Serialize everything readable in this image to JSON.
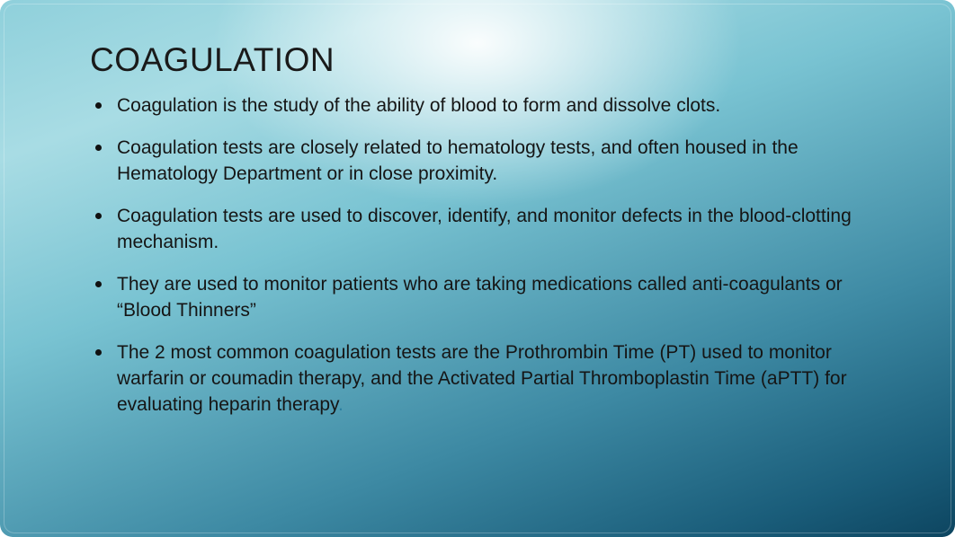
{
  "slide": {
    "title": "COAGULATION",
    "title_fontsize": 37,
    "title_color": "#1a1a1a",
    "body_fontsize": 21,
    "body_color": "#151515",
    "bullet_color": "#111111",
    "accent_color": "#2a7fa0",
    "background_gradient": {
      "type": "radial+linear",
      "highlight_center": "50% 8%",
      "highlight_color": "#ffffff",
      "stops": [
        "#8fd0db",
        "#a8dce4",
        "#79c3d2",
        "#3d89a3",
        "#1a5d7a",
        "#0d4560"
      ]
    },
    "border_radius": 14,
    "bullets": [
      "Coagulation is the study of the ability of blood to form and dissolve clots.",
      "Coagulation tests are closely related to hematology tests, and often housed in the Hematology Department or in close proximity.",
      "Coagulation tests are used to discover, identify, and monitor defects in the blood-clotting mechanism.",
      "They are used to monitor patients who are taking medications called anti-coagulants or “Blood Thinners”",
      "The 2 most common coagulation tests are the Prothrombin Time (PT) used to monitor warfarin or coumadin therapy, and the Activated Partial Thromboplastin Time (aPTT) for evaluating heparin therapy"
    ],
    "trailing_accent_dot": "."
  }
}
